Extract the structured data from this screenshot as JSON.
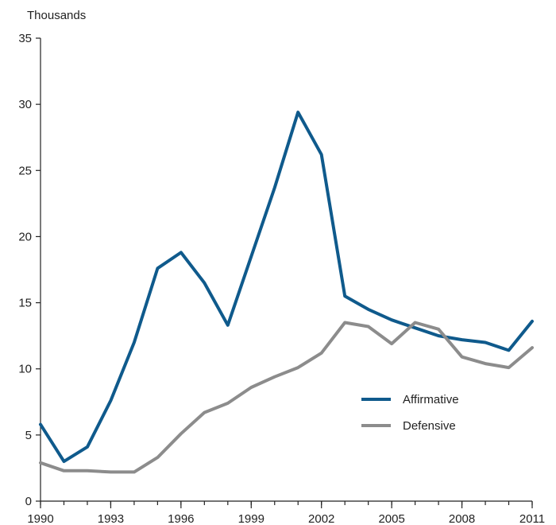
{
  "chart_data": {
    "type": "line",
    "unit_label": "Thousands",
    "x": [
      1990,
      1991,
      1992,
      1993,
      1994,
      1995,
      1996,
      1997,
      1998,
      1999,
      2000,
      2001,
      2002,
      2003,
      2004,
      2005,
      2006,
      2007,
      2008,
      2009,
      2010,
      2011
    ],
    "x_ticks": [
      "1990",
      "1993",
      "1996",
      "1999",
      "2002",
      "2005",
      "2008",
      "2011"
    ],
    "y_ticks": [
      "0",
      "5",
      "10",
      "15",
      "20",
      "25",
      "30",
      "35"
    ],
    "ylim": [
      0,
      35
    ],
    "xlim": [
      1990,
      2011
    ],
    "grid": false,
    "legend_position": "center-right",
    "series": [
      {
        "name": "Affirmative",
        "color": "#0f5a8c",
        "values": [
          5.8,
          3.0,
          4.1,
          7.6,
          12.0,
          17.6,
          18.8,
          16.5,
          13.3,
          18.5,
          23.7,
          29.4,
          26.2,
          15.5,
          14.5,
          13.7,
          13.1,
          12.5,
          12.2,
          12.0,
          11.4,
          13.6
        ]
      },
      {
        "name": "Defensive",
        "color": "#8c8c8c",
        "values": [
          2.9,
          2.3,
          2.3,
          2.2,
          2.2,
          3.3,
          5.1,
          6.7,
          7.4,
          8.6,
          9.4,
          10.1,
          11.2,
          13.5,
          13.2,
          11.9,
          13.5,
          13.0,
          10.9,
          10.4,
          10.1,
          11.6
        ]
      }
    ]
  }
}
